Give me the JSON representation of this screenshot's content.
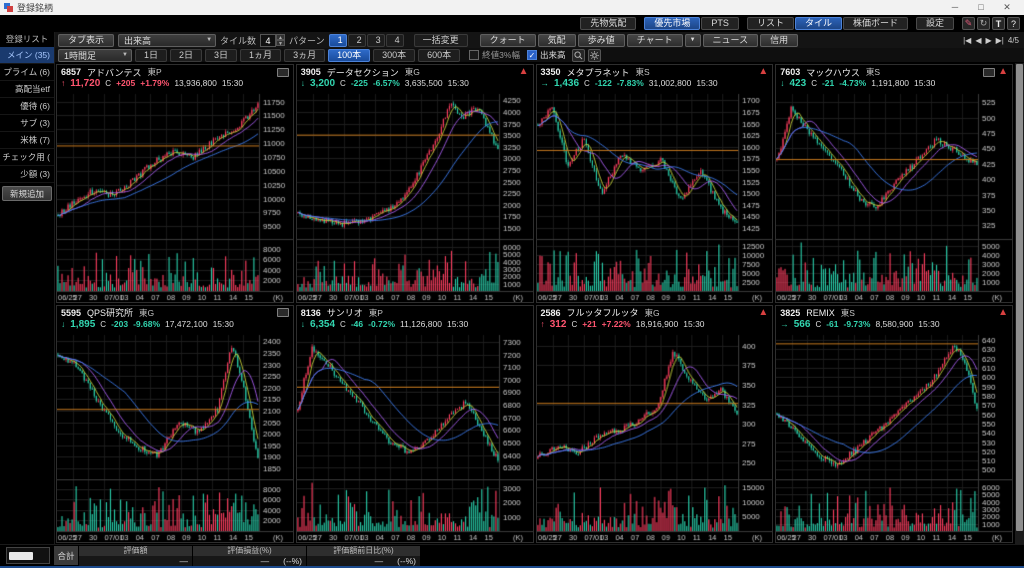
{
  "window": {
    "title": "登録銘柄"
  },
  "toolbar_top": {
    "buttons": [
      {
        "label": "先物気配",
        "active": false
      },
      {
        "label": "優先市場",
        "active": true
      },
      {
        "label": "PTS",
        "active": false
      },
      {
        "label": "リスト",
        "active": false
      },
      {
        "label": "タイル",
        "active": true
      },
      {
        "label": "株価ボード",
        "active": false
      },
      {
        "label": "設定",
        "active": false
      }
    ],
    "icons": [
      "edit",
      "refresh",
      "text",
      "help"
    ]
  },
  "toolbar_main": {
    "tab_display": "タブ表示",
    "sort_selected": "出来高",
    "tile_count_label": "タイル数",
    "tile_count_value": "4",
    "pattern_label": "パターン",
    "patterns": [
      "1",
      "2",
      "3",
      "4"
    ],
    "bulk_change": "一括変更",
    "view_buttons": [
      "クォート",
      "気配",
      "歩み値",
      "チャート",
      "ニュース",
      "信用"
    ],
    "chart_dropdown_caret": "▼",
    "pager": "4/5",
    "nav": [
      "|◀",
      "◀",
      "▶",
      "▶|"
    ]
  },
  "toolbar_chart": {
    "timeframe_selected": "1時間足",
    "periods": [
      "1日",
      "2日",
      "3日",
      "1ヵ月",
      "3ヵ月",
      "100本",
      "300本",
      "600本"
    ],
    "active_period": "100本",
    "checkbox_close_range": {
      "label": "終値3%幅",
      "checked": false
    },
    "checkbox_volume": {
      "label": "出来高",
      "checked": true
    }
  },
  "sidebar": {
    "header": "登録リスト",
    "items": [
      {
        "label": "メイン (35)",
        "active": true
      },
      {
        "label": "プライム (6)",
        "active": false
      },
      {
        "label": "高配当etf",
        "active": false
      },
      {
        "label": "優待 (6)",
        "active": false
      },
      {
        "label": "サブ (3)",
        "active": false
      },
      {
        "label": "米株 (7)",
        "active": false
      },
      {
        "label": "チェック用 (",
        "active": false
      },
      {
        "label": "少額 (3)",
        "active": false
      }
    ],
    "add_button": "新規追加"
  },
  "chart_common": {
    "xlabels": [
      "06/25",
      "27",
      "30",
      "07/01",
      "03",
      "04",
      "07",
      "08",
      "09",
      "10",
      "11",
      "14",
      "15"
    ],
    "unit_label": "(K)",
    "colors": {
      "up": "#ff3e60",
      "down": "#29d0ac",
      "hline": "#c87a1e",
      "ma_fast": "#c3cf3a",
      "ma_mid": "#a85ef0",
      "ma_slow": "#3d7df0"
    }
  },
  "tiles": [
    {
      "code": "6857",
      "name": "アドバンテス",
      "market": "東P",
      "arrow": "↑",
      "dir": "up",
      "price": "11,720",
      "cmark": "C",
      "change": "+205",
      "pct": "+1.79%",
      "volume": "13,936,800",
      "time": "15:30",
      "alert": false,
      "expand": true,
      "chart": {
        "yticks": [
          11750,
          11500,
          11250,
          11000,
          10750,
          10500,
          10250,
          10000,
          9750,
          9500
        ],
        "vticks": [
          8000,
          6000,
          4000,
          2000
        ],
        "vmax": 9500,
        "hline": 10950,
        "seed": 11,
        "anchors": [
          [
            0,
            9700
          ],
          [
            0.08,
            9950
          ],
          [
            0.18,
            10150
          ],
          [
            0.28,
            10050
          ],
          [
            0.38,
            10350
          ],
          [
            0.48,
            10650
          ],
          [
            0.58,
            10850
          ],
          [
            0.68,
            10750
          ],
          [
            0.78,
            11050
          ],
          [
            0.88,
            11250
          ],
          [
            0.96,
            11500
          ],
          [
            1,
            11720
          ]
        ]
      }
    },
    {
      "code": "3905",
      "name": "データセクション",
      "market": "東G",
      "arrow": "↓",
      "dir": "down",
      "price": "3,200",
      "cmark": "C",
      "change": "-225",
      "pct": "-6.57%",
      "volume": "3,635,500",
      "time": "15:30",
      "alert": true,
      "expand": false,
      "chart": {
        "yticks": [
          4250,
          4000,
          3750,
          3500,
          3250,
          3000,
          2750,
          2500,
          2250,
          2000,
          1750,
          1500
        ],
        "vticks": [
          6000,
          5000,
          4000,
          3000,
          2000,
          1000
        ],
        "vmax": 6800,
        "hline": 3500,
        "seed": 22,
        "anchors": [
          [
            0,
            1820
          ],
          [
            0.1,
            1700
          ],
          [
            0.2,
            1580
          ],
          [
            0.3,
            1640
          ],
          [
            0.4,
            1760
          ],
          [
            0.5,
            2050
          ],
          [
            0.58,
            2500
          ],
          [
            0.68,
            3300
          ],
          [
            0.76,
            4150
          ],
          [
            0.83,
            3900
          ],
          [
            0.9,
            4120
          ],
          [
            1,
            3200
          ]
        ]
      }
    },
    {
      "code": "3350",
      "name": "メタプラネット",
      "market": "東S",
      "arrow": "→",
      "dir": "down",
      "price": "1,436",
      "cmark": "C",
      "change": "-122",
      "pct": "-7.83%",
      "volume": "31,002,800",
      "time": "15:30",
      "alert": true,
      "expand": false,
      "chart": {
        "yticks": [
          1700,
          1675,
          1650,
          1625,
          1600,
          1575,
          1550,
          1525,
          1500,
          1475,
          1450,
          1425
        ],
        "vticks": [
          12500,
          10000,
          7500,
          5000,
          2500
        ],
        "vmax": 14000,
        "hline": 1592,
        "seed": 33,
        "anchors": [
          [
            0,
            1645
          ],
          [
            0.07,
            1685
          ],
          [
            0.15,
            1560
          ],
          [
            0.23,
            1615
          ],
          [
            0.32,
            1500
          ],
          [
            0.42,
            1585
          ],
          [
            0.52,
            1545
          ],
          [
            0.62,
            1570
          ],
          [
            0.72,
            1485
          ],
          [
            0.82,
            1545
          ],
          [
            0.92,
            1465
          ],
          [
            1,
            1436
          ]
        ]
      }
    },
    {
      "code": "7603",
      "name": "マックハウス",
      "market": "東S",
      "arrow": "↓",
      "dir": "down",
      "price": "423",
      "cmark": "C",
      "change": "-21",
      "pct": "-4.73%",
      "volume": "1,191,800",
      "time": "15:30",
      "alert": true,
      "expand": true,
      "chart": {
        "yticks": [
          525,
          500,
          475,
          450,
          425,
          400,
          375,
          350,
          325
        ],
        "vticks": [
          5000,
          4000,
          3000,
          2000,
          1000
        ],
        "vmax": 5600,
        "hline": 432,
        "seed": 44,
        "anchors": [
          [
            0,
            430
          ],
          [
            0.07,
            515
          ],
          [
            0.13,
            490
          ],
          [
            0.22,
            455
          ],
          [
            0.32,
            415
          ],
          [
            0.42,
            365
          ],
          [
            0.5,
            355
          ],
          [
            0.6,
            395
          ],
          [
            0.7,
            430
          ],
          [
            0.8,
            465
          ],
          [
            0.9,
            445
          ],
          [
            1,
            423
          ]
        ]
      }
    },
    {
      "code": "5595",
      "name": "QPS研究所",
      "market": "東G",
      "arrow": "↓",
      "dir": "down",
      "price": "1,895",
      "cmark": "C",
      "change": "-203",
      "pct": "-9.68%",
      "volume": "17,472,100",
      "time": "15:30",
      "alert": false,
      "expand": true,
      "chart": {
        "yticks": [
          2400,
          2350,
          2300,
          2250,
          2200,
          2150,
          2100,
          2050,
          2000,
          1950,
          1900,
          1850
        ],
        "vticks": [
          8000,
          6000,
          4000,
          2000
        ],
        "vmax": 9500,
        "hline": 2105,
        "seed": 55,
        "anchors": [
          [
            0,
            2340
          ],
          [
            0.1,
            2290
          ],
          [
            0.2,
            2140
          ],
          [
            0.3,
            2010
          ],
          [
            0.4,
            1940
          ],
          [
            0.5,
            1905
          ],
          [
            0.6,
            2050
          ],
          [
            0.7,
            2010
          ],
          [
            0.8,
            2110
          ],
          [
            0.87,
            2390
          ],
          [
            0.93,
            2190
          ],
          [
            1,
            1895
          ]
        ]
      }
    },
    {
      "code": "8136",
      "name": "サンリオ",
      "market": "東P",
      "arrow": "↓",
      "dir": "down",
      "price": "6,354",
      "cmark": "C",
      "change": "-46",
      "pct": "-0.72%",
      "volume": "11,126,800",
      "time": "15:30",
      "alert": false,
      "expand": false,
      "chart": {
        "yticks": [
          7300,
          7200,
          7100,
          7000,
          6900,
          6800,
          6700,
          6600,
          6500,
          6400,
          6300
        ],
        "vticks": [
          3000,
          2000,
          1000
        ],
        "vmax": 3500,
        "hline": 6940,
        "seed": 66,
        "anchors": [
          [
            0,
            6780
          ],
          [
            0.07,
            7260
          ],
          [
            0.15,
            7120
          ],
          [
            0.25,
            6920
          ],
          [
            0.35,
            6720
          ],
          [
            0.45,
            6520
          ],
          [
            0.55,
            6420
          ],
          [
            0.65,
            6520
          ],
          [
            0.75,
            6700
          ],
          [
            0.84,
            6820
          ],
          [
            0.92,
            6600
          ],
          [
            1,
            6354
          ]
        ]
      }
    },
    {
      "code": "2586",
      "name": "フルッタフルッタ",
      "market": "東G",
      "arrow": "↑",
      "dir": "up",
      "price": "312",
      "cmark": "C",
      "change": "+21",
      "pct": "+7.22%",
      "volume": "18,916,900",
      "time": "15:30",
      "alert": true,
      "expand": false,
      "chart": {
        "yticks": [
          400,
          375,
          350,
          325,
          300,
          275,
          250
        ],
        "vticks": [
          15000,
          10000,
          5000
        ],
        "vmax": 17000,
        "hline": 326,
        "seed": 77,
        "anchors": [
          [
            0,
            258
          ],
          [
            0.1,
            272
          ],
          [
            0.2,
            264
          ],
          [
            0.3,
            282
          ],
          [
            0.4,
            292
          ],
          [
            0.5,
            302
          ],
          [
            0.6,
            322
          ],
          [
            0.68,
            392
          ],
          [
            0.76,
            358
          ],
          [
            0.84,
            332
          ],
          [
            0.92,
            342
          ],
          [
            1,
            312
          ]
        ]
      }
    },
    {
      "code": "3825",
      "name": "REMIX",
      "market": "東S",
      "arrow": "→",
      "dir": "down",
      "price": "566",
      "cmark": "C",
      "change": "-61",
      "pct": "-9.73%",
      "volume": "8,580,900",
      "time": "15:30",
      "alert": true,
      "expand": false,
      "chart": {
        "yticks": [
          640,
          630,
          620,
          610,
          600,
          590,
          580,
          570,
          560,
          550,
          540,
          530,
          520,
          510,
          500
        ],
        "vticks": [
          6000,
          5000,
          4000,
          3000,
          2000,
          1000
        ],
        "vmax": 6800,
        "hline": 636,
        "seed": 88,
        "anchors": [
          [
            0,
            558
          ],
          [
            0.1,
            540
          ],
          [
            0.2,
            516
          ],
          [
            0.3,
            506
          ],
          [
            0.4,
            522
          ],
          [
            0.5,
            542
          ],
          [
            0.6,
            562
          ],
          [
            0.7,
            582
          ],
          [
            0.8,
            602
          ],
          [
            0.88,
            634
          ],
          [
            0.94,
            618
          ],
          [
            1,
            566
          ]
        ]
      }
    }
  ],
  "footer": {
    "total_label": "合計",
    "columns": [
      {
        "header": "評価額",
        "value": "—",
        "pct": ""
      },
      {
        "header": "評価損益(%)",
        "value": "—",
        "pct": "(--%)"
      },
      {
        "header": "評価額前日比(%)",
        "value": "—",
        "pct": "(--%)"
      }
    ]
  }
}
